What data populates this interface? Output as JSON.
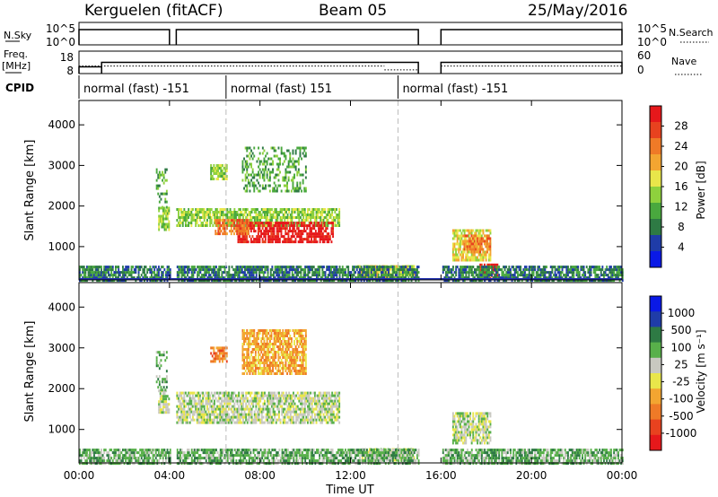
{
  "chart_data": {
    "type": "heatmap",
    "header": {
      "station": "Kerguelen (fitACF)",
      "beam": "Beam 05",
      "date": "25/May/2016"
    },
    "status_panels": {
      "nsky_label": "N.Sky",
      "nsky_ticks": [
        "10^5",
        "10^0"
      ],
      "nsearch_label": "N.Search",
      "nsearch_ticks": [
        "10^5",
        "10^0"
      ],
      "freq_label": [
        "Freq.",
        "[MHz]"
      ],
      "freq_ticks": [
        "18",
        "8"
      ],
      "nave_label": "Nave",
      "nave_ticks": [
        "60",
        "0"
      ],
      "cpid_label": "CPID",
      "gaps_hours": [
        [
          4.0,
          4.3
        ],
        [
          15.0,
          16.0
        ]
      ],
      "freq_steps": [
        {
          "from": 0.0,
          "to": 1.0,
          "mhz": 11
        },
        {
          "from": 1.0,
          "to": 15.0,
          "mhz": 13
        },
        {
          "from": 16.0,
          "to": 24.0,
          "mhz": 13
        }
      ],
      "nave_steps": [
        {
          "from": 0.0,
          "to": 13.5,
          "value": 20
        },
        {
          "from": 13.5,
          "to": 15.0,
          "value": 10
        },
        {
          "from": 16.0,
          "to": 24.0,
          "value": 20
        }
      ],
      "cpid_segments": [
        {
          "label": "normal (fast) -151",
          "start": 0.0
        },
        {
          "label": "normal (fast) 151",
          "start": 6.5
        },
        {
          "label": "normal (fast) -151",
          "start": 14.1
        }
      ]
    },
    "x_axis": {
      "label": "Time UT",
      "range_hours": [
        0,
        24
      ],
      "tick_labels": [
        "00:00",
        "04:00",
        "08:00",
        "12:00",
        "16:00",
        "20:00",
        "00:00"
      ]
    },
    "y_axis": {
      "label": "Slant Range [km]",
      "range_km": [
        180,
        4600
      ],
      "ticks": [
        1000,
        2000,
        3000,
        4000
      ]
    },
    "mode_change_hours": [
      6.5,
      14.1
    ],
    "power_panel": {
      "colorbar_label": "Power [dB]",
      "colorbar_ticks": [
        "28",
        "24",
        "20",
        "16",
        "12",
        "8",
        "4"
      ],
      "colors": [
        "#0a19e6",
        "#1f3ca8",
        "#2e7a44",
        "#49a83e",
        "#8ed13d",
        "#e9e64a",
        "#f3a531",
        "#ef7a27",
        "#e8421f",
        "#e6181b"
      ],
      "regions": [
        {
          "t0": 3.5,
          "t1": 4.05,
          "r0": 1450,
          "r1": 2000,
          "level": 4
        },
        {
          "t0": 3.4,
          "t1": 3.9,
          "r0": 2000,
          "r1": 2950,
          "level": 3
        },
        {
          "t0": 4.3,
          "t1": 11.5,
          "r0": 1550,
          "r1": 1950,
          "level": 4
        },
        {
          "t0": 7.0,
          "t1": 11.2,
          "r0": 1150,
          "r1": 1650,
          "level": 9
        },
        {
          "t0": 6.0,
          "t1": 7.5,
          "r0": 1350,
          "r1": 1700,
          "level": 7
        },
        {
          "t0": 5.8,
          "t1": 6.5,
          "r0": 2700,
          "r1": 3050,
          "level": 4
        },
        {
          "t0": 7.2,
          "t1": 10.0,
          "r0": 2400,
          "r1": 3500,
          "level": 3
        },
        {
          "t0": 12.3,
          "t1": 14.8,
          "r0": 280,
          "r1": 550,
          "level": 5
        },
        {
          "t0": 16.5,
          "t1": 18.2,
          "r0": 700,
          "r1": 1450,
          "level": 5
        },
        {
          "t0": 17.7,
          "t1": 18.5,
          "r0": 250,
          "r1": 600,
          "level": 9
        },
        {
          "t0": 17.0,
          "t1": 18.2,
          "r0": 900,
          "r1": 1300,
          "level": 7
        },
        {
          "t0": 0.0,
          "t1": 24.0,
          "r0": 200,
          "r1": 560,
          "level": 2
        }
      ]
    },
    "velocity_panel": {
      "colorbar_label": "Velocity [m s⁻¹]",
      "colorbar_ticks": [
        "1000",
        "500",
        "100",
        "25",
        "-25",
        "-100",
        "-500",
        "-1000"
      ],
      "colors": [
        "#0a19e6",
        "#1f3ca8",
        "#2e7a44",
        "#58b04a",
        "#c8c8c0",
        "#e9e64a",
        "#f3a531",
        "#ef7a27",
        "#e8421f",
        "#e6181b"
      ],
      "regions": [
        {
          "t0": 3.5,
          "t1": 4.05,
          "r0": 1450,
          "r1": 2000,
          "level": 4
        },
        {
          "t0": 4.3,
          "t1": 11.5,
          "r0": 1200,
          "r1": 1950,
          "level": 4
        },
        {
          "t0": 3.4,
          "t1": 3.9,
          "r0": 2000,
          "r1": 2950,
          "level": 3
        },
        {
          "t0": 5.8,
          "t1": 6.5,
          "r0": 2700,
          "r1": 3050,
          "level": 7
        },
        {
          "t0": 7.2,
          "t1": 10.0,
          "r0": 2400,
          "r1": 3500,
          "level": 6
        },
        {
          "t0": 12.3,
          "t1": 14.8,
          "r0": 280,
          "r1": 550,
          "level": 4
        },
        {
          "t0": 16.5,
          "t1": 18.2,
          "r0": 700,
          "r1": 1450,
          "level": 4
        },
        {
          "t0": 0.0,
          "t1": 24.0,
          "r0": 200,
          "r1": 560,
          "level": 3
        }
      ]
    }
  }
}
